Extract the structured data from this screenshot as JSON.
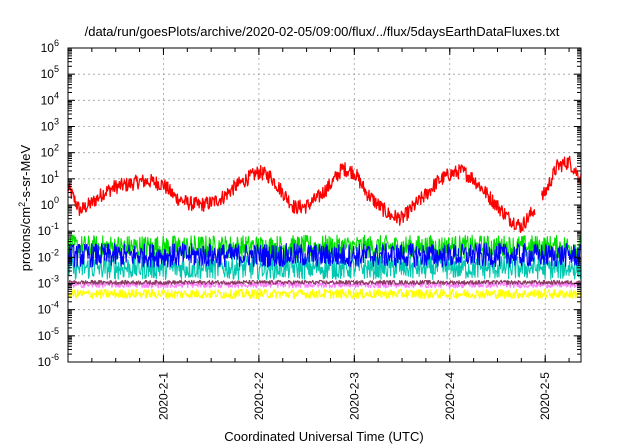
{
  "chart_data": {
    "type": "line",
    "title": "/data/run/goesPlots/archive/2020-02-05/09:00/flux/../flux/5daysEarthDataFluxes.txt",
    "xlabel": "Coordinated Universal Time (UTC)",
    "ylabel_parts": {
      "base": "protons/cm",
      "sup": "2",
      "rest": "-s-sr-MeV"
    },
    "yscale": "log",
    "ylim": [
      1e-06,
      1000000.0
    ],
    "xlim": [
      "2020-01-31T00:00",
      "2020-02-05T09:00"
    ],
    "grid": true,
    "x_ticks": [
      {
        "label": "2020-2-1",
        "x": "2020-02-01T00:00"
      },
      {
        "label": "2020-2-2",
        "x": "2020-02-02T00:00"
      },
      {
        "label": "2020-2-3",
        "x": "2020-02-03T00:00"
      },
      {
        "label": "2020-2-4",
        "x": "2020-02-04T00:00"
      },
      {
        "label": "2020-2-5",
        "x": "2020-02-05T00:00"
      }
    ],
    "y_ticks": [
      {
        "base": "10",
        "exp": "6"
      },
      {
        "base": "10",
        "exp": "5"
      },
      {
        "base": "10",
        "exp": "4"
      },
      {
        "base": "10",
        "exp": "3"
      },
      {
        "base": "10",
        "exp": "2"
      },
      {
        "base": "10",
        "exp": "1"
      },
      {
        "base": "10",
        "exp": "0"
      },
      {
        "base": "10",
        "exp": "-1"
      },
      {
        "base": "10",
        "exp": "-2"
      },
      {
        "base": "10",
        "exp": "-3"
      },
      {
        "base": "10",
        "exp": "-4"
      },
      {
        "base": "10",
        "exp": "-5"
      },
      {
        "base": "10",
        "exp": "-6"
      }
    ],
    "series": [
      {
        "color": "#ff0000",
        "noise": 0.28,
        "x": [
          "2020-01-31T00:00",
          "2020-01-31T03:00",
          "2020-01-31T06:00",
          "2020-01-31T09:00",
          "2020-01-31T12:00",
          "2020-01-31T15:00",
          "2020-01-31T18:00",
          "2020-01-31T21:00",
          "2020-02-01T00:00",
          "2020-02-01T03:00",
          "2020-02-01T06:00",
          "2020-02-01T09:00",
          "2020-02-01T12:00",
          "2020-02-01T15:00",
          "2020-02-01T18:00",
          "2020-02-01T21:00",
          "2020-02-02T00:00",
          "2020-02-02T03:00",
          "2020-02-02T06:00",
          "2020-02-02T09:00",
          "2020-02-02T12:00",
          "2020-02-02T15:00",
          "2020-02-02T18:00",
          "2020-02-02T21:00",
          "2020-02-03T00:00",
          "2020-02-03T03:00",
          "2020-02-03T06:00",
          "2020-02-03T09:00",
          "2020-02-03T12:00",
          "2020-02-03T15:00",
          "2020-02-03T18:00",
          "2020-02-03T21:00",
          "2020-02-04T00:00",
          "2020-02-04T03:00",
          "2020-02-04T06:00",
          "2020-02-04T09:00",
          "2020-02-04T12:00",
          "2020-02-04T15:00",
          "2020-02-04T18:00",
          "2020-02-04T21:00",
          "2020-02-05T00:00",
          "2020-02-05T03:00",
          "2020-02-05T06:00",
          "2020-02-05T09:00"
        ],
        "y": [
          5,
          0.6,
          1.2,
          3,
          5,
          6,
          8,
          8,
          6,
          2,
          1.2,
          1,
          1.2,
          2,
          5,
          10,
          18,
          12,
          3,
          0.8,
          0.9,
          2,
          6,
          25,
          18,
          3,
          1,
          0.4,
          0.3,
          0.9,
          2.5,
          8,
          15,
          20,
          10,
          3,
          0.9,
          0.3,
          0.15,
          0.6,
          3,
          30,
          45,
          10
        ],
        "gaps": [
          [
            "2020-02-04T21:30",
            "2020-02-04T23:00"
          ]
        ]
      },
      {
        "color": "#00e000",
        "noise": 0.45,
        "x": [
          "2020-01-31T00:00",
          "2020-02-05T09:00"
        ],
        "y": [
          0.025,
          0.025
        ]
      },
      {
        "color": "#00c8b0",
        "noise": 0.45,
        "x": [
          "2020-01-31T00:00",
          "2020-02-05T09:00"
        ],
        "y": [
          0.004,
          0.004
        ]
      },
      {
        "color": "#0000ff",
        "noise": 0.45,
        "x": [
          "2020-01-31T00:00",
          "2020-02-05T09:00"
        ],
        "y": [
          0.012,
          0.012
        ]
      },
      {
        "color": "#ffff00",
        "noise": 0.18,
        "x": [
          "2020-01-31T00:00",
          "2020-02-05T09:00"
        ],
        "y": [
          0.0004,
          0.0004
        ]
      },
      {
        "color": "#ff80ff",
        "noise": 0.12,
        "x": [
          "2020-01-31T00:00",
          "2020-02-05T09:00"
        ],
        "y": [
          0.0009,
          0.0009
        ]
      },
      {
        "color": "#8b3a62",
        "noise": 0.08,
        "x": [
          "2020-01-31T00:00",
          "2020-02-05T09:00"
        ],
        "y": [
          0.0011,
          0.0011
        ]
      }
    ]
  }
}
